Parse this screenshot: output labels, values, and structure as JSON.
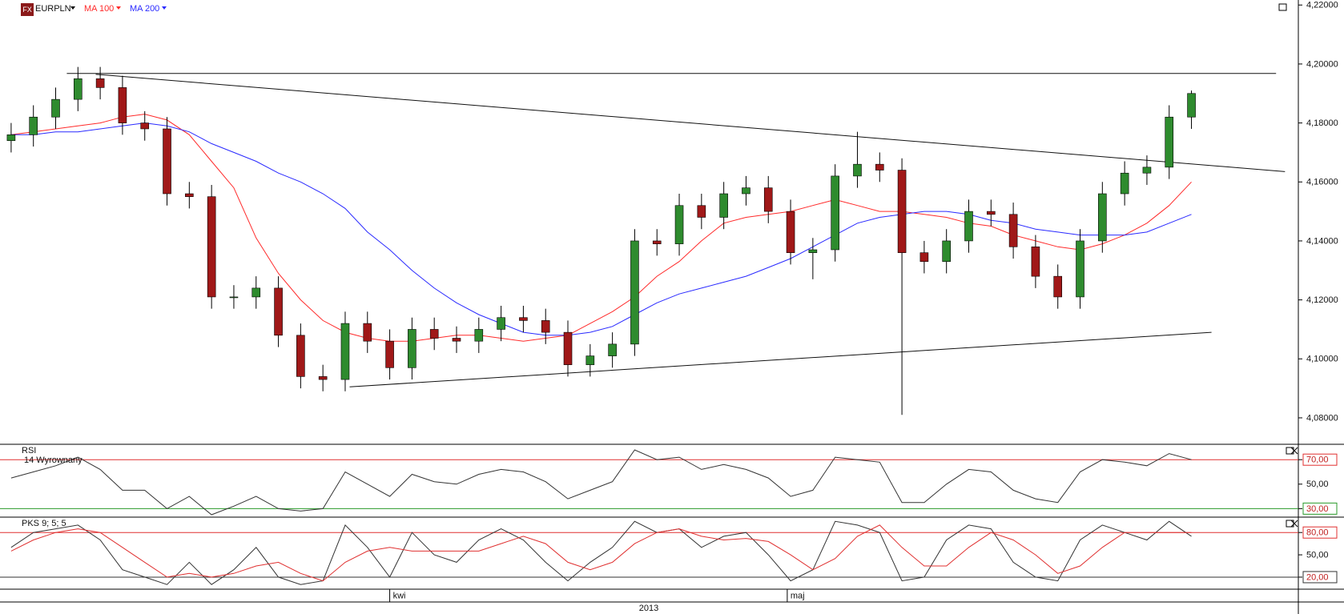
{
  "chart_data": [
    {
      "type": "candlestick",
      "title": "EURPLN",
      "xlim": [
        -0.5,
        57.8
      ],
      "ylim": [
        4.0713,
        4.2217
      ],
      "yticks": [
        {
          "value": 4.22,
          "label": "4,22000"
        },
        {
          "value": 4.2,
          "label": "4,20000"
        },
        {
          "value": 4.18,
          "label": "4,18000"
        },
        {
          "value": 4.16,
          "label": "4,16000"
        },
        {
          "value": 4.14,
          "label": "4,14000"
        },
        {
          "value": 4.12,
          "label": "4,12000"
        },
        {
          "value": 4.1,
          "label": "4,10000"
        },
        {
          "value": 4.08,
          "label": "4,08000"
        }
      ],
      "xticks": [
        {
          "value": 17.0,
          "label": "kwi"
        },
        {
          "value": 34.85,
          "label": "maj"
        }
      ],
      "xlabel": "2013",
      "ohlc": {
        "name": "EURPLN",
        "up_color": "#2e8b2e",
        "down_color": "#a01818",
        "open": [
          4.174,
          4.176,
          4.182,
          4.188,
          4.195,
          4.192,
          4.18,
          4.178,
          4.156,
          4.155,
          4.121,
          4.121,
          4.124,
          4.108,
          4.094,
          4.093,
          4.112,
          4.106,
          4.097,
          4.11,
          4.107,
          4.106,
          4.11,
          4.114,
          4.113,
          4.109,
          4.098,
          4.101,
          4.105,
          4.14,
          4.139,
          4.152,
          4.148,
          4.156,
          4.158,
          4.15,
          4.136,
          4.137,
          4.162,
          4.166,
          4.164,
          4.136,
          4.133,
          4.14,
          4.15,
          4.149,
          4.138,
          4.128,
          4.121,
          4.14,
          4.156,
          4.163,
          4.165,
          4.182
        ],
        "high": [
          4.18,
          4.186,
          4.192,
          4.199,
          4.199,
          4.196,
          4.184,
          4.182,
          4.16,
          4.159,
          4.125,
          4.128,
          4.128,
          4.112,
          4.098,
          4.116,
          4.116,
          4.11,
          4.114,
          4.114,
          4.111,
          4.114,
          4.118,
          4.118,
          4.117,
          4.113,
          4.105,
          4.109,
          4.144,
          4.144,
          4.156,
          4.156,
          4.16,
          4.162,
          4.162,
          4.154,
          4.141,
          4.166,
          4.177,
          4.17,
          4.168,
          4.14,
          4.144,
          4.154,
          4.154,
          4.153,
          4.142,
          4.132,
          4.144,
          4.16,
          4.167,
          4.169,
          4.186,
          4.191
        ],
        "low": [
          4.17,
          4.172,
          4.178,
          4.184,
          4.188,
          4.176,
          4.174,
          4.152,
          4.151,
          4.117,
          4.117,
          4.117,
          4.104,
          4.09,
          4.089,
          4.089,
          4.102,
          4.093,
          4.093,
          4.103,
          4.102,
          4.102,
          4.106,
          4.109,
          4.105,
          4.094,
          4.094,
          4.097,
          4.101,
          4.135,
          4.135,
          4.144,
          4.144,
          4.152,
          4.146,
          4.132,
          4.127,
          4.133,
          4.158,
          4.16,
          4.081,
          4.129,
          4.129,
          4.136,
          4.145,
          4.134,
          4.124,
          4.117,
          4.117,
          4.136,
          4.152,
          4.159,
          4.161,
          4.178
        ],
        "close": [
          4.176,
          4.182,
          4.188,
          4.195,
          4.192,
          4.18,
          4.178,
          4.156,
          4.155,
          4.121,
          4.121,
          4.124,
          4.108,
          4.094,
          4.093,
          4.112,
          4.106,
          4.097,
          4.11,
          4.107,
          4.106,
          4.11,
          4.114,
          4.113,
          4.109,
          4.098,
          4.101,
          4.105,
          4.14,
          4.139,
          4.152,
          4.148,
          4.156,
          4.158,
          4.15,
          4.136,
          4.137,
          4.162,
          4.166,
          4.164,
          4.136,
          4.133,
          4.14,
          4.15,
          4.149,
          4.138,
          4.128,
          4.121,
          4.14,
          4.156,
          4.163,
          4.165,
          4.182,
          4.19
        ]
      },
      "series": [
        {
          "name": "MA 100",
          "color": "#ff2a2a",
          "values": [
            4.176,
            4.177,
            4.178,
            4.179,
            4.18,
            4.182,
            4.183,
            4.181,
            4.176,
            4.167,
            4.158,
            4.141,
            4.129,
            4.12,
            4.113,
            4.109,
            4.107,
            4.106,
            4.106,
            4.107,
            4.108,
            4.108,
            4.107,
            4.106,
            4.107,
            4.108,
            4.112,
            4.116,
            4.121,
            4.128,
            4.133,
            4.14,
            4.146,
            4.148,
            4.149,
            4.15,
            4.152,
            4.154,
            4.152,
            4.15,
            4.15,
            4.149,
            4.148,
            4.146,
            4.145,
            4.142,
            4.14,
            4.138,
            4.137,
            4.139,
            4.142,
            4.146,
            4.152,
            4.16
          ]
        },
        {
          "name": "MA 200",
          "color": "#2a2aff",
          "values": [
            4.176,
            4.176,
            4.177,
            4.177,
            4.178,
            4.179,
            4.18,
            4.179,
            4.177,
            4.173,
            4.17,
            4.167,
            4.163,
            4.16,
            4.156,
            4.151,
            4.143,
            4.137,
            4.13,
            4.124,
            4.119,
            4.115,
            4.112,
            4.109,
            4.108,
            4.108,
            4.109,
            4.111,
            4.115,
            4.119,
            4.122,
            4.124,
            4.126,
            4.128,
            4.131,
            4.134,
            4.138,
            4.142,
            4.146,
            4.148,
            4.149,
            4.15,
            4.15,
            4.149,
            4.147,
            4.146,
            4.144,
            4.143,
            4.142,
            4.142,
            4.142,
            4.143,
            4.146,
            4.149
          ]
        }
      ],
      "trendlines": [
        {
          "x": [
            2.5,
            56.8
          ],
          "y": [
            4.1968,
            4.1968
          ]
        },
        {
          "x": [
            3.8,
            57.2
          ],
          "y": [
            4.1965,
            4.1635
          ]
        },
        {
          "x": [
            15.2,
            53.9
          ],
          "y": [
            4.0905,
            4.109
          ]
        }
      ]
    },
    {
      "type": "line",
      "title": "RSI",
      "subtitle": "14 Wyrownany",
      "ylim": [
        23.7,
        81.9
      ],
      "yticks": [
        {
          "value": 70,
          "label": "70,00"
        },
        {
          "value": 50,
          "label": "50,00"
        },
        {
          "value": 30,
          "label": "30,00"
        }
      ],
      "levels": [
        {
          "value": 70,
          "color": "#e03030"
        },
        {
          "value": 30,
          "color": "#2a9a2a"
        }
      ],
      "series": [
        {
          "color": "#333333",
          "values": [
            55,
            60,
            65,
            72,
            62,
            45,
            45,
            30,
            40,
            25,
            32,
            40,
            30,
            28,
            30,
            60,
            50,
            40,
            58,
            52,
            50,
            58,
            62,
            60,
            52,
            38,
            45,
            52,
            78,
            70,
            72,
            62,
            66,
            62,
            55,
            40,
            45,
            72,
            70,
            68,
            35,
            35,
            50,
            62,
            60,
            45,
            38,
            35,
            60,
            70,
            68,
            65,
            75,
            70
          ]
        }
      ]
    },
    {
      "type": "line",
      "title": "PKS 9; 5; 5",
      "ylim": [
        3.8,
        99.6
      ],
      "yticks": [
        {
          "value": 80,
          "label": "80,00"
        },
        {
          "value": 50,
          "label": "50,00"
        },
        {
          "value": 20,
          "label": "20,00"
        }
      ],
      "levels": [
        {
          "value": 80,
          "color": "#e03030"
        },
        {
          "value": 20,
          "color": "#333333"
        }
      ],
      "series": [
        {
          "color": "#333333",
          "values": [
            60,
            80,
            85,
            90,
            70,
            30,
            20,
            10,
            40,
            10,
            30,
            60,
            20,
            10,
            15,
            90,
            60,
            20,
            80,
            50,
            40,
            70,
            85,
            70,
            40,
            15,
            40,
            60,
            95,
            80,
            85,
            60,
            75,
            80,
            50,
            15,
            30,
            95,
            90,
            80,
            15,
            20,
            70,
            90,
            85,
            40,
            20,
            15,
            70,
            90,
            80,
            70,
            95,
            75
          ]
        },
        {
          "color": "#e03030",
          "values": [
            55,
            70,
            80,
            85,
            80,
            60,
            40,
            20,
            25,
            20,
            25,
            35,
            40,
            25,
            15,
            40,
            55,
            60,
            55,
            55,
            55,
            55,
            65,
            75,
            65,
            40,
            30,
            40,
            65,
            80,
            85,
            75,
            70,
            72,
            68,
            50,
            30,
            45,
            75,
            90,
            60,
            35,
            35,
            60,
            80,
            70,
            50,
            25,
            35,
            60,
            80,
            80,
            80,
            80
          ]
        }
      ]
    }
  ]
}
